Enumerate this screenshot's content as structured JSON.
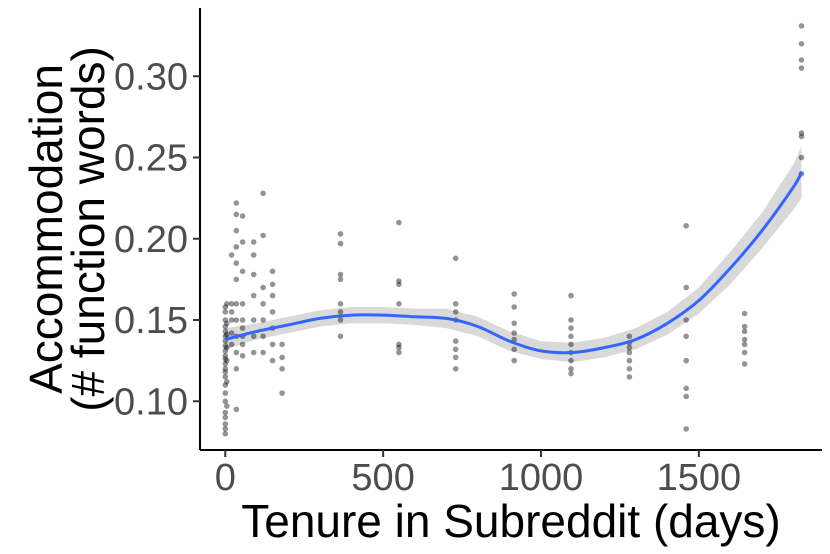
{
  "chart_data": {
    "type": "scatter",
    "title": "",
    "xlabel": "Tenure in Subreddit (days)",
    "ylabel_lines": [
      "Accommodation",
      "(# function words)"
    ],
    "xlim": [
      -80,
      1890
    ],
    "ylim": [
      0.07,
      0.342
    ],
    "xticks": [
      0,
      500,
      1000,
      1500
    ],
    "yticks": [
      0.1,
      0.15,
      0.2,
      0.25,
      0.3
    ],
    "xtick_labels": [
      "0",
      "500",
      "1000",
      "1500"
    ],
    "ytick_labels": [
      "0.10",
      "0.15",
      "0.20",
      "0.25",
      "0.30"
    ],
    "grid": false,
    "legend": "none",
    "colors": {
      "points": "#000000",
      "smooth_line": "#3366ff",
      "ribbon": "#bfbfbf"
    },
    "points": [
      [
        0,
        0.08
      ],
      [
        0,
        0.083
      ],
      [
        0,
        0.086
      ],
      [
        0,
        0.09
      ],
      [
        0,
        0.093
      ],
      [
        0,
        0.1
      ],
      [
        0,
        0.105
      ],
      [
        0,
        0.11
      ],
      [
        0,
        0.115
      ],
      [
        0,
        0.118
      ],
      [
        0,
        0.12
      ],
      [
        0,
        0.123
      ],
      [
        0,
        0.126
      ],
      [
        0,
        0.128
      ],
      [
        0,
        0.131
      ],
      [
        0,
        0.134
      ],
      [
        0,
        0.137
      ],
      [
        0,
        0.14
      ],
      [
        0,
        0.143
      ],
      [
        0,
        0.146
      ],
      [
        0,
        0.15
      ],
      [
        0,
        0.155
      ],
      [
        0,
        0.158
      ],
      [
        5,
        0.097
      ],
      [
        5,
        0.112
      ],
      [
        5,
        0.125
      ],
      [
        5,
        0.133
      ],
      [
        5,
        0.141
      ],
      [
        5,
        0.148
      ],
      [
        5,
        0.16
      ],
      [
        20,
        0.135
      ],
      [
        20,
        0.142
      ],
      [
        20,
        0.15
      ],
      [
        20,
        0.155
      ],
      [
        20,
        0.16
      ],
      [
        20,
        0.19
      ],
      [
        35,
        0.095
      ],
      [
        35,
        0.12
      ],
      [
        35,
        0.13
      ],
      [
        35,
        0.14
      ],
      [
        35,
        0.15
      ],
      [
        35,
        0.16
      ],
      [
        35,
        0.175
      ],
      [
        35,
        0.185
      ],
      [
        35,
        0.195
      ],
      [
        35,
        0.205
      ],
      [
        35,
        0.215
      ],
      [
        35,
        0.222
      ],
      [
        55,
        0.128
      ],
      [
        55,
        0.135
      ],
      [
        55,
        0.14
      ],
      [
        55,
        0.145
      ],
      [
        55,
        0.15
      ],
      [
        55,
        0.16
      ],
      [
        55,
        0.18
      ],
      [
        55,
        0.198
      ],
      [
        55,
        0.214
      ],
      [
        90,
        0.13
      ],
      [
        90,
        0.14
      ],
      [
        90,
        0.15
      ],
      [
        90,
        0.165
      ],
      [
        90,
        0.178
      ],
      [
        90,
        0.19
      ],
      [
        90,
        0.198
      ],
      [
        120,
        0.13
      ],
      [
        120,
        0.14
      ],
      [
        120,
        0.15
      ],
      [
        120,
        0.16
      ],
      [
        120,
        0.17
      ],
      [
        120,
        0.202
      ],
      [
        120,
        0.228
      ],
      [
        150,
        0.125
      ],
      [
        150,
        0.135
      ],
      [
        150,
        0.145
      ],
      [
        150,
        0.155
      ],
      [
        150,
        0.165
      ],
      [
        150,
        0.172
      ],
      [
        150,
        0.18
      ],
      [
        180,
        0.105
      ],
      [
        180,
        0.12
      ],
      [
        180,
        0.127
      ],
      [
        180,
        0.135
      ],
      [
        365,
        0.14
      ],
      [
        365,
        0.15
      ],
      [
        365,
        0.155
      ],
      [
        365,
        0.16
      ],
      [
        365,
        0.175
      ],
      [
        365,
        0.178
      ],
      [
        365,
        0.197
      ],
      [
        365,
        0.203
      ],
      [
        550,
        0.13
      ],
      [
        550,
        0.133
      ],
      [
        550,
        0.135
      ],
      [
        550,
        0.16
      ],
      [
        550,
        0.172
      ],
      [
        550,
        0.174
      ],
      [
        550,
        0.21
      ],
      [
        730,
        0.12
      ],
      [
        730,
        0.127
      ],
      [
        730,
        0.132
      ],
      [
        730,
        0.137
      ],
      [
        730,
        0.15
      ],
      [
        730,
        0.155
      ],
      [
        730,
        0.16
      ],
      [
        730,
        0.188
      ],
      [
        915,
        0.125
      ],
      [
        915,
        0.132
      ],
      [
        915,
        0.138
      ],
      [
        915,
        0.142
      ],
      [
        915,
        0.148
      ],
      [
        915,
        0.158
      ],
      [
        915,
        0.166
      ],
      [
        1095,
        0.117
      ],
      [
        1095,
        0.12
      ],
      [
        1095,
        0.125
      ],
      [
        1095,
        0.13
      ],
      [
        1095,
        0.135
      ],
      [
        1095,
        0.14
      ],
      [
        1095,
        0.145
      ],
      [
        1095,
        0.15
      ],
      [
        1095,
        0.165
      ],
      [
        1280,
        0.115
      ],
      [
        1280,
        0.12
      ],
      [
        1280,
        0.125
      ],
      [
        1280,
        0.13
      ],
      [
        1280,
        0.133
      ],
      [
        1280,
        0.136
      ],
      [
        1280,
        0.14
      ],
      [
        1460,
        0.083
      ],
      [
        1460,
        0.103
      ],
      [
        1460,
        0.108
      ],
      [
        1460,
        0.125
      ],
      [
        1460,
        0.14
      ],
      [
        1460,
        0.15
      ],
      [
        1460,
        0.17
      ],
      [
        1460,
        0.208
      ],
      [
        1645,
        0.123
      ],
      [
        1645,
        0.13
      ],
      [
        1645,
        0.135
      ],
      [
        1645,
        0.138
      ],
      [
        1645,
        0.143
      ],
      [
        1645,
        0.146
      ],
      [
        1645,
        0.154
      ],
      [
        1825,
        0.24
      ],
      [
        1825,
        0.25
      ],
      [
        1825,
        0.263
      ],
      [
        1825,
        0.265
      ],
      [
        1825,
        0.305
      ],
      [
        1825,
        0.31
      ],
      [
        1825,
        0.32
      ],
      [
        1825,
        0.331
      ]
    ],
    "smooth": {
      "x": [
        0,
        100,
        200,
        300,
        400,
        500,
        600,
        700,
        800,
        900,
        1000,
        1100,
        1200,
        1300,
        1400,
        1500,
        1600,
        1700,
        1800,
        1825
      ],
      "y": [
        0.138,
        0.143,
        0.147,
        0.151,
        0.153,
        0.153,
        0.152,
        0.151,
        0.146,
        0.137,
        0.131,
        0.13,
        0.133,
        0.138,
        0.148,
        0.162,
        0.182,
        0.205,
        0.232,
        0.241
      ],
      "lower": [
        0.132,
        0.138,
        0.142,
        0.146,
        0.148,
        0.148,
        0.147,
        0.145,
        0.14,
        0.131,
        0.126,
        0.124,
        0.127,
        0.132,
        0.141,
        0.154,
        0.172,
        0.194,
        0.218,
        0.225
      ],
      "upper": [
        0.145,
        0.148,
        0.152,
        0.156,
        0.158,
        0.158,
        0.157,
        0.157,
        0.152,
        0.143,
        0.137,
        0.136,
        0.139,
        0.145,
        0.155,
        0.17,
        0.192,
        0.216,
        0.246,
        0.257
      ]
    }
  }
}
